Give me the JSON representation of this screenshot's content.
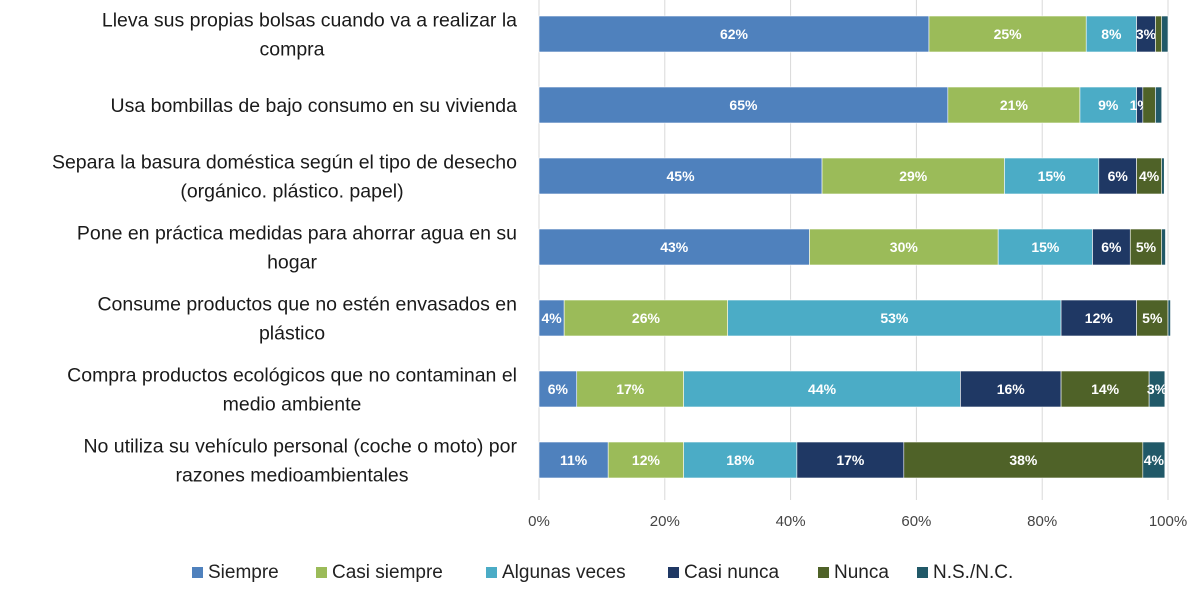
{
  "chart_data": {
    "type": "bar",
    "orientation": "horizontal",
    "stacked": true,
    "percent_stacked": true,
    "categories": [
      [
        "Lleva sus propias bolsas cuando va a realizar la",
        "compra"
      ],
      [
        "Usa bombillas de bajo consumo en su vivienda"
      ],
      [
        "Separa la basura doméstica según el tipo de desecho",
        "(orgánico. plástico. papel)"
      ],
      [
        "Pone en práctica medidas para ahorrar agua en su",
        "hogar"
      ],
      [
        "Consume productos que no estén envasados en",
        "plástico"
      ],
      [
        "Compra productos ecológicos que no contaminan el",
        "medio ambiente"
      ],
      [
        "No utiliza su vehículo personal (coche o moto) por",
        "razones medioambientales"
      ]
    ],
    "series": [
      {
        "name": "Siempre",
        "color": "#4f81bd",
        "values": [
          62,
          65,
          45,
          43,
          4,
          6,
          11
        ],
        "labels": [
          "62%",
          "65%",
          "45%",
          "43%",
          "4%",
          "6%",
          "11%"
        ]
      },
      {
        "name": "Casi siempre",
        "color": "#9bbb59",
        "values": [
          25,
          21,
          29,
          30,
          26,
          17,
          12
        ],
        "labels": [
          "25%",
          "21%",
          "29%",
          "30%",
          "26%",
          "17%",
          "12%"
        ]
      },
      {
        "name": "Algunas veces",
        "color": "#4bacc6",
        "values": [
          8,
          9,
          15,
          15,
          53,
          44,
          18
        ],
        "labels": [
          "8%",
          "9%",
          "15%",
          "15%",
          "53%",
          "44%",
          "18%"
        ]
      },
      {
        "name": "Casi nunca",
        "color": "#1f3864",
        "values": [
          3,
          1,
          6,
          6,
          12,
          16,
          17
        ],
        "labels": [
          "3%",
          "1%",
          "6%",
          "6%",
          "12%",
          "16%",
          "17%"
        ]
      },
      {
        "name": "Nunca",
        "color": "#4f6228",
        "values": [
          1,
          2,
          4,
          5,
          5,
          14,
          38
        ],
        "labels": [
          "",
          "",
          "4%",
          "5%",
          "5%",
          "14%",
          "38%"
        ]
      },
      {
        "name": "N.S./N.C.",
        "color": "#215968",
        "values": [
          1,
          1,
          0.4,
          0.6,
          0.4,
          2.5,
          3.5
        ],
        "labels": [
          "",
          "",
          "",
          "",
          "",
          "3%",
          "4%"
        ]
      }
    ],
    "xaxis": {
      "min": 0,
      "max": 100,
      "ticks": [
        0,
        20,
        40,
        60,
        80,
        100
      ],
      "tick_labels": [
        "0%",
        "20%",
        "40%",
        "60%",
        "80%",
        "100%"
      ]
    },
    "grid": true,
    "legend": "bottom"
  }
}
